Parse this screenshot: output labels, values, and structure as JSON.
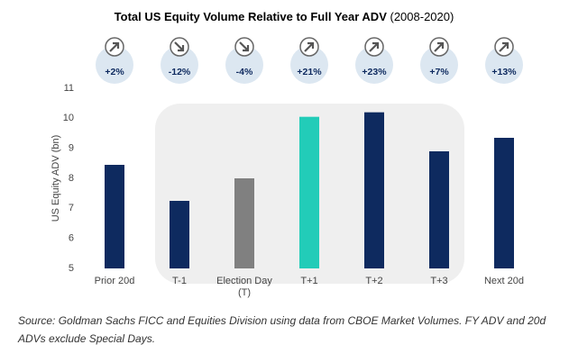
{
  "chart_data": {
    "type": "bar",
    "title": "Total US Equity Volume Relative to Full Year ADV",
    "subtitle": "(2008-2020)",
    "y_label": "US Equity ADV (bn)",
    "categories": [
      "Prior 20d",
      "T-1",
      "Election Day (T)",
      "T+1",
      "T+2",
      "T+3",
      "Next 20d"
    ],
    "values": [
      8.45,
      7.25,
      8.0,
      10.05,
      10.2,
      8.9,
      9.35
    ],
    "colors": [
      "#0e2a5f",
      "#0e2a5f",
      "#808080",
      "#22ccb8",
      "#0e2a5f",
      "#0e2a5f",
      "#0e2a5f"
    ],
    "annotations": [
      "+2%",
      "-12%",
      "-4%",
      "+21%",
      "+23%",
      "+7%",
      "+13%"
    ],
    "ylim": [
      5,
      11
    ],
    "yticks": [
      5,
      6,
      7,
      8,
      9,
      10,
      11
    ],
    "grid": false,
    "source": "Source: Goldman Sachs FICC and Equities Division using data from CBOE Market Volumes. FY ADV and 20d ADVs exclude Special Days."
  }
}
